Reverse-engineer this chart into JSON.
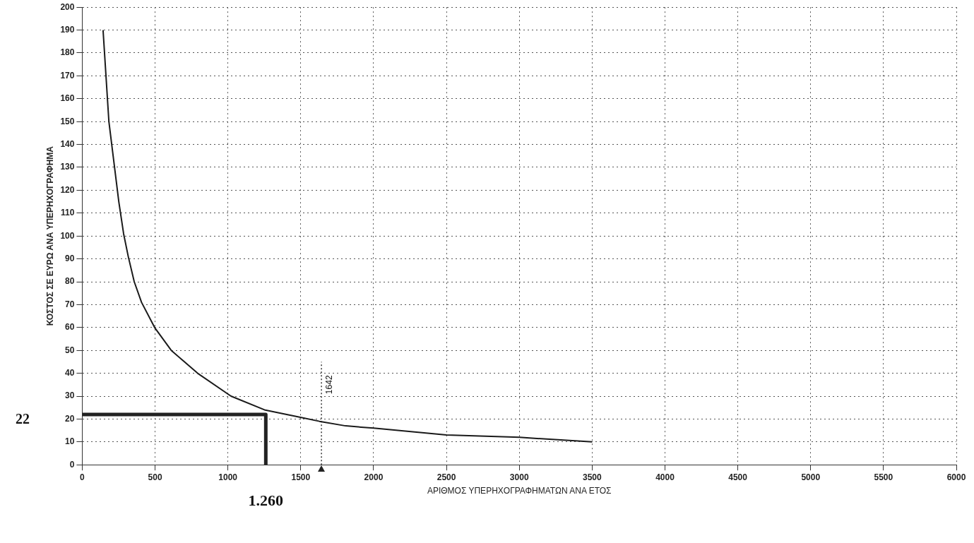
{
  "chart_data": {
    "type": "line",
    "xlabel": "ΑΡΙΘΜΟΣ ΥΠΕΡΗΧΟΓΡΑΦΗΜΑΤΩΝ ΑΝΑ ΕΤΟΣ",
    "ylabel": "ΚΟΣΤΟΣ ΣΕ ΕΥΡΩ ΑΝΑ ΥΠΕΡΗΧΟΓΡΑΦΗΜΑ",
    "xlim": [
      0,
      6000
    ],
    "xticks": [
      0,
      500,
      1000,
      1500,
      2000,
      2500,
      3000,
      3500,
      4000,
      4500,
      5000,
      5500,
      6000
    ],
    "ylim": [
      0,
      200
    ],
    "yticks": [
      0,
      10,
      20,
      30,
      40,
      50,
      60,
      70,
      80,
      90,
      100,
      110,
      120,
      130,
      140,
      150,
      160,
      170,
      180,
      190,
      200
    ],
    "grid": true,
    "marker": "none",
    "series": [
      {
        "color": "#1a1a1a",
        "line_style": "solid",
        "x": [
          143,
          183,
          251,
          284,
          316,
          357,
          407,
          497,
          611,
          792,
          1021,
          1251,
          1480,
          1628,
          1808,
          2000,
          2500,
          3000,
          3500
        ],
        "values": [
          190,
          150,
          115,
          101,
          91,
          80,
          71,
          60,
          50,
          40,
          30,
          24,
          21,
          19,
          17,
          16,
          13,
          12,
          10
        ]
      },
      {
        "color": "#222222",
        "line_style": "solid",
        "x": [
          0,
          1260,
          1260
        ],
        "values": [
          22,
          22,
          0
        ]
      },
      {
        "color": "#333333",
        "line_style": "dotted",
        "x": [
          1642,
          1642
        ],
        "values": [
          0,
          45
        ]
      }
    ],
    "annotations": [
      "22",
      {
        "text": "1.260",
        "x": 1260,
        "y": 0
      },
      {
        "text": "1642",
        "x": 1642,
        "y": 35
      }
    ]
  }
}
